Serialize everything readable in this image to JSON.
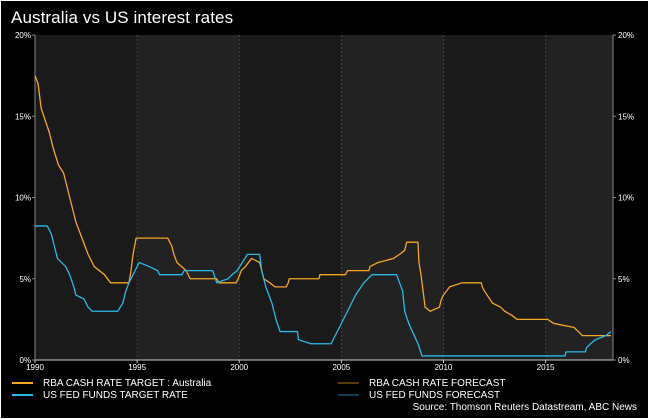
{
  "title": "Australia vs US interest rates",
  "source": "Source: Thomson Reuters Datastream, ABC News",
  "colors": {
    "background": "#000000",
    "shaded_band": "#222222",
    "unshaded_band": "#1a1a1a",
    "rba": "#f5a623",
    "fed": "#2bb9e6",
    "rba_forecast": "#5a3a0d",
    "fed_forecast": "#0e3d4d",
    "text": "#ffffff"
  },
  "legend": [
    {
      "label": "RBA CASH RATE TARGET : Australia",
      "series": "rba"
    },
    {
      "label": "RBA CASH RATE FORECAST",
      "series": "rba_forecast"
    },
    {
      "label": "US FED FUNDS TARGET RATE",
      "series": "fed"
    },
    {
      "label": "US FED FUNDS FORECAST",
      "series": "fed_forecast"
    }
  ],
  "chart_data": {
    "type": "line",
    "title": "Australia vs US interest rates",
    "xlabel": "",
    "ylabel": "",
    "xlim": [
      1990,
      2018.3
    ],
    "ylim": [
      0,
      20
    ],
    "x_ticks": [
      "1990",
      "1995",
      "2000",
      "2005",
      "2010",
      "2015"
    ],
    "y_ticks": [
      "0%",
      "5%",
      "10%",
      "15%",
      "20%"
    ],
    "grid": "vertical dashed at year ticks",
    "legend_position": "bottom",
    "series": [
      {
        "name": "RBA CASH RATE TARGET : Australia",
        "key": "rba",
        "points": [
          [
            1990.0,
            17.5
          ],
          [
            1990.15,
            17.0
          ],
          [
            1990.3,
            15.5
          ],
          [
            1990.7,
            14.0
          ],
          [
            1990.9,
            13.0
          ],
          [
            1991.15,
            12.0
          ],
          [
            1991.4,
            11.5
          ],
          [
            1991.6,
            10.5
          ],
          [
            1991.8,
            9.5
          ],
          [
            1992.0,
            8.5
          ],
          [
            1992.3,
            7.5
          ],
          [
            1992.6,
            6.5
          ],
          [
            1992.9,
            5.75
          ],
          [
            1993.4,
            5.25
          ],
          [
            1993.7,
            4.75
          ],
          [
            1994.6,
            4.75
          ],
          [
            1994.7,
            5.5
          ],
          [
            1994.8,
            6.5
          ],
          [
            1994.95,
            7.5
          ],
          [
            1996.5,
            7.5
          ],
          [
            1996.7,
            7.0
          ],
          [
            1996.8,
            6.5
          ],
          [
            1996.95,
            6.0
          ],
          [
            1997.4,
            5.5
          ],
          [
            1997.6,
            5.0
          ],
          [
            1998.9,
            5.0
          ],
          [
            1999.0,
            4.75
          ],
          [
            1999.85,
            4.75
          ],
          [
            1999.95,
            5.0
          ],
          [
            2000.1,
            5.5
          ],
          [
            2000.3,
            5.75
          ],
          [
            2000.6,
            6.25
          ],
          [
            2001.0,
            6.0
          ],
          [
            2001.2,
            5.0
          ],
          [
            2001.5,
            4.75
          ],
          [
            2001.75,
            4.5
          ],
          [
            2002.3,
            4.5
          ],
          [
            2002.4,
            4.75
          ],
          [
            2002.45,
            5.0
          ],
          [
            2003.9,
            5.0
          ],
          [
            2003.95,
            5.25
          ],
          [
            2005.2,
            5.25
          ],
          [
            2005.3,
            5.5
          ],
          [
            2006.35,
            5.5
          ],
          [
            2006.4,
            5.75
          ],
          [
            2006.8,
            6.0
          ],
          [
            2007.55,
            6.25
          ],
          [
            2007.85,
            6.5
          ],
          [
            2008.1,
            6.75
          ],
          [
            2008.2,
            7.25
          ],
          [
            2008.75,
            7.25
          ],
          [
            2008.8,
            6.0
          ],
          [
            2008.9,
            5.25
          ],
          [
            2009.0,
            4.25
          ],
          [
            2009.1,
            3.25
          ],
          [
            2009.35,
            3.0
          ],
          [
            2009.8,
            3.25
          ],
          [
            2009.9,
            3.75
          ],
          [
            2010.0,
            4.0
          ],
          [
            2010.3,
            4.5
          ],
          [
            2010.9,
            4.75
          ],
          [
            2011.85,
            4.75
          ],
          [
            2011.9,
            4.5
          ],
          [
            2012.0,
            4.25
          ],
          [
            2012.4,
            3.5
          ],
          [
            2012.8,
            3.25
          ],
          [
            2013.0,
            3.0
          ],
          [
            2013.35,
            2.75
          ],
          [
            2013.6,
            2.5
          ],
          [
            2015.1,
            2.5
          ],
          [
            2015.4,
            2.25
          ],
          [
            2016.4,
            2.0
          ],
          [
            2016.6,
            1.75
          ],
          [
            2016.8,
            1.5
          ],
          [
            2018.2,
            1.5
          ]
        ]
      },
      {
        "name": "US FED FUNDS TARGET RATE",
        "key": "fed",
        "points": [
          [
            1990.0,
            8.25
          ],
          [
            1990.6,
            8.25
          ],
          [
            1990.8,
            7.75
          ],
          [
            1990.95,
            7.0
          ],
          [
            1991.1,
            6.25
          ],
          [
            1991.5,
            5.75
          ],
          [
            1991.7,
            5.25
          ],
          [
            1991.9,
            4.5
          ],
          [
            1992.0,
            4.0
          ],
          [
            1992.4,
            3.75
          ],
          [
            1992.6,
            3.25
          ],
          [
            1992.8,
            3.0
          ],
          [
            1994.05,
            3.0
          ],
          [
            1994.3,
            3.5
          ],
          [
            1994.45,
            4.25
          ],
          [
            1994.6,
            4.75
          ],
          [
            1994.9,
            5.5
          ],
          [
            1995.1,
            6.0
          ],
          [
            1995.6,
            5.75
          ],
          [
            1996.0,
            5.5
          ],
          [
            1996.1,
            5.25
          ],
          [
            1997.2,
            5.25
          ],
          [
            1997.3,
            5.5
          ],
          [
            1998.7,
            5.5
          ],
          [
            1998.9,
            4.75
          ],
          [
            1999.45,
            5.0
          ],
          [
            1999.65,
            5.25
          ],
          [
            1999.9,
            5.5
          ],
          [
            2000.15,
            6.0
          ],
          [
            2000.4,
            6.5
          ],
          [
            2001.0,
            6.5
          ],
          [
            2001.1,
            5.5
          ],
          [
            2001.3,
            4.5
          ],
          [
            2001.6,
            3.5
          ],
          [
            2001.8,
            2.5
          ],
          [
            2002.0,
            1.75
          ],
          [
            2002.85,
            1.75
          ],
          [
            2002.9,
            1.25
          ],
          [
            2003.5,
            1.0
          ],
          [
            2004.5,
            1.0
          ],
          [
            2004.9,
            2.0
          ],
          [
            2005.3,
            3.0
          ],
          [
            2005.7,
            4.0
          ],
          [
            2006.1,
            4.75
          ],
          [
            2006.5,
            5.25
          ],
          [
            2007.7,
            5.25
          ],
          [
            2007.85,
            4.75
          ],
          [
            2008.0,
            4.25
          ],
          [
            2008.1,
            3.0
          ],
          [
            2008.3,
            2.25
          ],
          [
            2008.75,
            1.0
          ],
          [
            2008.95,
            0.25
          ],
          [
            2015.95,
            0.25
          ],
          [
            2016.0,
            0.5
          ],
          [
            2016.95,
            0.5
          ],
          [
            2017.0,
            0.75
          ],
          [
            2017.2,
            1.0
          ],
          [
            2017.45,
            1.25
          ],
          [
            2017.95,
            1.5
          ],
          [
            2018.2,
            1.75
          ]
        ]
      },
      {
        "name": "RBA CASH RATE FORECAST",
        "key": "rba_forecast",
        "points": []
      },
      {
        "name": "US FED FUNDS FORECAST",
        "key": "fed_forecast",
        "points": []
      }
    ]
  }
}
